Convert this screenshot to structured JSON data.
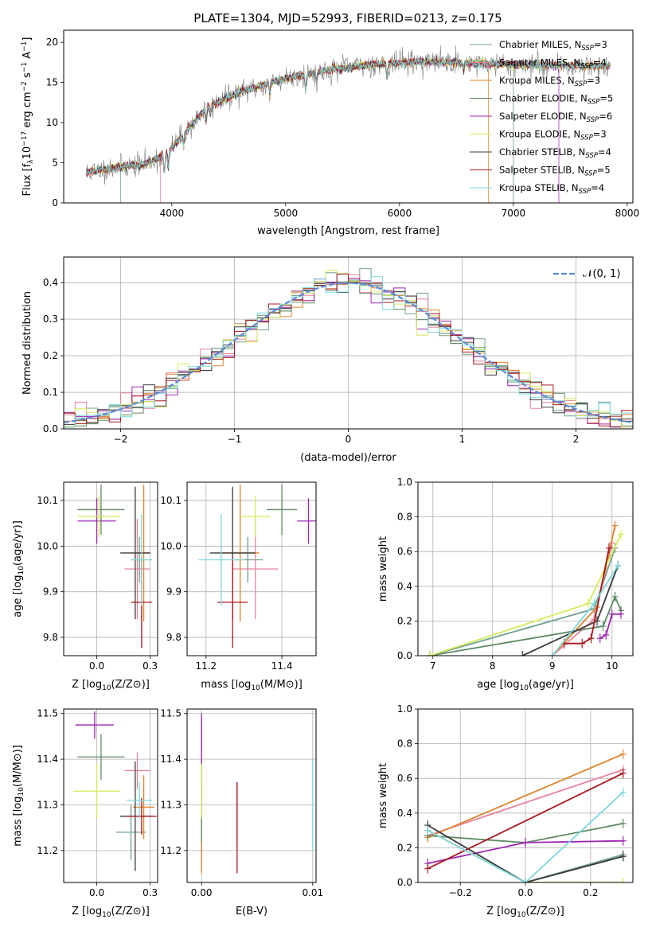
{
  "figure_title": "PLATE=1304, MJD=52993, FIBERID=0213, z=0.175",
  "series": [
    {
      "label": "Chabrier MILES, N",
      "sub": "SSP",
      "suffix": "=3",
      "color": "#6fa08c"
    },
    {
      "label": "Salpeter MILES, N",
      "sub": "SSP",
      "suffix": "=4",
      "color": "#e7849a"
    },
    {
      "label": "Kroupa MILES, N",
      "sub": "SSP",
      "suffix": "=3",
      "color": "#e0842c"
    },
    {
      "label": "Chabrier ELODIE, N",
      "sub": "SSP",
      "suffix": "=5",
      "color": "#5d8a62"
    },
    {
      "label": "Salpeter ELODIE, N",
      "sub": "SSP",
      "suffix": "=6",
      "color": "#9c27b0"
    },
    {
      "label": "Kroupa ELODIE, N",
      "sub": "SSP",
      "suffix": "=3",
      "color": "#d4ec5a"
    },
    {
      "label": "Chabrier STELIB, N",
      "sub": "SSP",
      "suffix": "=4",
      "color": "#3a3a3a"
    },
    {
      "label": "Salpeter STELIB, N",
      "sub": "SSP",
      "suffix": "=5",
      "color": "#a8181e"
    },
    {
      "label": "Kroupa STELIB, N",
      "sub": "SSP",
      "suffix": "=4",
      "color": "#7fd8dc"
    }
  ],
  "chart_data": [
    {
      "id": "spectrum",
      "type": "line",
      "xlabel": "wavelength [Angstrom, rest frame]",
      "ylabel_parts": [
        "Flux [f",
        "λ",
        "10",
        "−17",
        " erg cm",
        "−2",
        " s",
        "−1",
        " A",
        "−1",
        "]"
      ],
      "xlim": [
        3050,
        8050
      ],
      "ylim": [
        0,
        21.5
      ],
      "xticks": [
        4000,
        5000,
        6000,
        7000,
        8000
      ],
      "yticks": [
        0,
        5,
        10,
        15,
        20
      ],
      "legend": "top-right",
      "continuum_knots": [
        [
          3250,
          3.8
        ],
        [
          3500,
          4.4
        ],
        [
          3750,
          4.8
        ],
        [
          3950,
          6.0
        ],
        [
          4100,
          8.5
        ],
        [
          4300,
          11.8
        ],
        [
          4600,
          13.8
        ],
        [
          5000,
          15.5
        ],
        [
          5400,
          16.6
        ],
        [
          5800,
          17.3
        ],
        [
          6200,
          17.6
        ],
        [
          6600,
          17.4
        ],
        [
          7000,
          17.2
        ],
        [
          7500,
          17.1
        ],
        [
          7850,
          17.0
        ]
      ],
      "model_range": [
        3250,
        7850
      ],
      "model_dropouts": [
        3550,
        3900,
        6780,
        7000,
        7400
      ]
    },
    {
      "id": "residuals",
      "type": "histogram",
      "xlabel": "(data-model)/error",
      "ylabel": "Normed distribution",
      "xlim": [
        -2.5,
        2.5
      ],
      "ylim": [
        0,
        0.47
      ],
      "xticks": [
        -2,
        -1,
        0,
        1,
        2
      ],
      "yticks": [
        0,
        0.1,
        0.2,
        0.3,
        0.4
      ],
      "reference_curve": "N(0,1)",
      "legend": "top-right",
      "bin_width": 0.1
    },
    {
      "id": "age-vs-Z",
      "type": "errorbar",
      "xlabel": "Z [log10(Z/Z⊙)]",
      "ylabel": "age  [log10(age/yr)]",
      "xlim": [
        -0.155,
        0.285
      ],
      "ylim": [
        9.76,
        10.14
      ],
      "xticks": [
        0.0,
        0.25
      ],
      "yticks": [
        9.8,
        9.9,
        10.0,
        10.1
      ],
      "points": [
        {
          "x": 0.2,
          "xerr": 0.04,
          "y": 9.97,
          "yerr": 0.05
        },
        {
          "x": 0.19,
          "xerr": 0.06,
          "y": 9.95,
          "yerr": 0.11
        },
        {
          "x": 0.22,
          "xerr": 0.03,
          "y": 9.985,
          "yerr": 0.15
        },
        {
          "x": 0.02,
          "xerr": 0.11,
          "y": 10.08,
          "yerr": 0.055
        },
        {
          "x": 0.0,
          "xerr": 0.09,
          "y": 10.055,
          "yerr": 0.05
        },
        {
          "x": 0.01,
          "xerr": 0.1,
          "y": 10.065,
          "yerr": 0.045
        },
        {
          "x": 0.18,
          "xerr": 0.07,
          "y": 9.985,
          "yerr": 0.145
        },
        {
          "x": 0.21,
          "xerr": 0.05,
          "y": 9.877,
          "yerr": 0.1
        },
        {
          "x": 0.21,
          "xerr": 0.05,
          "y": 9.97,
          "yerr": 0.1
        }
      ]
    },
    {
      "id": "age-vs-mass",
      "type": "errorbar",
      "xlabel": "mass [log10(M/M⊙)]",
      "ylabel": "",
      "xlim": [
        11.15,
        11.49
      ],
      "ylim": [
        9.76,
        10.14
      ],
      "xticks": [
        11.2,
        11.4
      ],
      "yticks": [
        9.8,
        9.9,
        10.0,
        10.1
      ],
      "points": [
        {
          "x": 11.31,
          "xerr": 0.04,
          "y": 9.97,
          "yerr": 0.05
        },
        {
          "x": 11.33,
          "xerr": 0.06,
          "y": 9.95,
          "yerr": 0.11
        },
        {
          "x": 11.29,
          "xerr": 0.05,
          "y": 9.985,
          "yerr": 0.15
        },
        {
          "x": 11.4,
          "xerr": 0.04,
          "y": 10.08,
          "yerr": 0.055
        },
        {
          "x": 11.47,
          "xerr": 0.03,
          "y": 10.055,
          "yerr": 0.05
        },
        {
          "x": 11.33,
          "xerr": 0.04,
          "y": 10.065,
          "yerr": 0.045
        },
        {
          "x": 11.27,
          "xerr": 0.06,
          "y": 9.985,
          "yerr": 0.145
        },
        {
          "x": 11.27,
          "xerr": 0.04,
          "y": 9.877,
          "yerr": 0.1
        },
        {
          "x": 11.24,
          "xerr": 0.06,
          "y": 9.97,
          "yerr": 0.1
        }
      ]
    },
    {
      "id": "massweight-vs-age",
      "type": "line",
      "xlabel": "age  [log10(age/yr)]",
      "ylabel": "mass weight",
      "xlim": [
        6.75,
        10.35
      ],
      "ylim": [
        0,
        1.0
      ],
      "xticks": [
        7,
        8,
        9,
        10
      ],
      "yticks": [
        0.0,
        0.2,
        0.4,
        0.6,
        0.8,
        1.0
      ],
      "lines": [
        {
          "pts": [
            [
              6.95,
              0.0
            ],
            [
              9.7,
              0.27
            ],
            [
              10.05,
              0.62
            ]
          ]
        },
        {
          "pts": [
            [
              9.0,
              0.0
            ],
            [
              9.7,
              0.21
            ],
            [
              10.0,
              0.65
            ]
          ]
        },
        {
          "pts": [
            [
              9.0,
              0.0
            ],
            [
              9.75,
              0.28
            ],
            [
              10.05,
              0.75
            ]
          ]
        },
        {
          "pts": [
            [
              6.95,
              0.0
            ],
            [
              9.85,
              0.17
            ],
            [
              10.05,
              0.34
            ],
            [
              10.15,
              0.26
            ]
          ]
        },
        {
          "pts": [
            [
              9.8,
              0.1
            ],
            [
              9.9,
              0.12
            ],
            [
              10.0,
              0.24
            ],
            [
              10.15,
              0.24
            ]
          ]
        },
        {
          "pts": [
            [
              6.95,
              0.0
            ],
            [
              9.6,
              0.3
            ],
            [
              10.15,
              0.7
            ]
          ]
        },
        {
          "pts": [
            [
              8.5,
              0.0
            ],
            [
              9.75,
              0.2
            ],
            [
              10.1,
              0.52
            ]
          ]
        },
        {
          "pts": [
            [
              9.2,
              0.07
            ],
            [
              9.5,
              0.07
            ],
            [
              9.65,
              0.1
            ],
            [
              9.95,
              0.62
            ]
          ]
        },
        {
          "pts": [
            [
              9.0,
              0.0
            ],
            [
              9.7,
              0.3
            ],
            [
              10.1,
              0.52
            ]
          ]
        }
      ]
    },
    {
      "id": "mass-vs-Z",
      "type": "errorbar",
      "xlabel": "Z [log10(Z/Z⊙)]",
      "ylabel": "mass [log10(M/M⊙)]",
      "xlim": [
        -0.155,
        0.285
      ],
      "ylim": [
        11.13,
        11.51
      ],
      "xticks": [
        0.0,
        0.25
      ],
      "yticks": [
        11.2,
        11.3,
        11.4,
        11.5
      ],
      "points": [
        {
          "x": 0.16,
          "xerr": 0.07,
          "y": 11.24,
          "yerr": 0.06
        },
        {
          "x": 0.19,
          "xerr": 0.06,
          "y": 11.375,
          "yerr": 0.04
        },
        {
          "x": 0.22,
          "xerr": 0.05,
          "y": 11.295,
          "yerr": 0.07
        },
        {
          "x": 0.02,
          "xerr": 0.11,
          "y": 11.405,
          "yerr": 0.05
        },
        {
          "x": -0.01,
          "xerr": 0.09,
          "y": 11.475,
          "yerr": 0.03
        },
        {
          "x": 0.0,
          "xerr": 0.11,
          "y": 11.33,
          "yerr": 0.06
        },
        {
          "x": 0.18,
          "xerr": 0.07,
          "y": 11.275,
          "yerr": 0.12
        },
        {
          "x": 0.21,
          "xerr": 0.07,
          "y": 11.275,
          "yerr": 0.04
        },
        {
          "x": 0.2,
          "xerr": 0.06,
          "y": 11.31,
          "yerr": 0.04
        }
      ]
    },
    {
      "id": "mass-vs-ebv",
      "type": "errorbar",
      "xlabel": "E(B-V)",
      "ylabel": "",
      "xlim": [
        -0.0013,
        0.0103
      ],
      "ylim": [
        11.13,
        11.51
      ],
      "xticks": [
        0.0,
        0.01
      ],
      "yticks": [
        11.2,
        11.3,
        11.4,
        11.5
      ],
      "points": [
        {
          "x": 0.0,
          "xerr": 0,
          "y": 11.33,
          "yerr": 0.16
        },
        {
          "x": 0.0,
          "xerr": 0,
          "y": 11.38,
          "yerr": 0.1
        },
        {
          "x": 0.0,
          "xerr": 0,
          "y": 11.25,
          "yerr": 0.1
        },
        {
          "x": 0.0,
          "xerr": 0,
          "y": 11.28,
          "yerr": 0.06
        },
        {
          "x": 0.0,
          "xerr": 0,
          "y": 11.4,
          "yerr": 0.1
        },
        {
          "x": 0.0,
          "xerr": 0,
          "y": 11.33,
          "yerr": 0.06
        },
        {
          "x": 0.0032,
          "xerr": 0,
          "y": 11.28,
          "yerr": 0.07
        },
        {
          "x": 0.0032,
          "xerr": 0,
          "y": 11.25,
          "yerr": 0.1
        },
        {
          "x": 0.01,
          "xerr": 0,
          "y": 11.3,
          "yerr": 0.1
        }
      ]
    },
    {
      "id": "massweight-vs-Z",
      "type": "line",
      "xlabel": "Z [log10(Z/Z⊙)]",
      "ylabel": "mass weight",
      "xlim": [
        -0.33,
        0.33
      ],
      "ylim": [
        0,
        1.0
      ],
      "xticks": [
        -0.2,
        0.0,
        0.2
      ],
      "yticks": [
        0.0,
        0.2,
        0.4,
        0.6,
        0.8,
        1.0
      ],
      "lines": [
        {
          "pts": [
            [
              -0.3,
              0.3
            ],
            [
              0.0,
              0.0
            ],
            [
              0.3,
              0.16
            ]
          ]
        },
        {
          "pts": [
            [
              -0.3,
              0.27
            ],
            [
              0.3,
              0.65
            ]
          ]
        },
        {
          "pts": [
            [
              -0.3,
              0.26
            ],
            [
              0.3,
              0.74
            ]
          ]
        },
        {
          "pts": [
            [
              -0.3,
              0.27
            ],
            [
              0.0,
              0.23
            ],
            [
              0.3,
              0.34
            ]
          ]
        },
        {
          "pts": [
            [
              -0.3,
              0.11
            ],
            [
              0.0,
              0.23
            ],
            [
              0.3,
              0.24
            ]
          ]
        },
        {
          "pts": [
            [
              -0.3,
              0.3
            ],
            [
              0.0,
              0.0
            ],
            [
              0.3,
              0.0
            ]
          ]
        },
        {
          "pts": [
            [
              -0.3,
              0.33
            ],
            [
              0.0,
              0.0
            ],
            [
              0.3,
              0.15
            ]
          ]
        },
        {
          "pts": [
            [
              -0.3,
              0.08
            ],
            [
              0.3,
              0.63
            ]
          ]
        },
        {
          "pts": [
            [
              -0.3,
              0.3
            ],
            [
              0.0,
              0.0
            ],
            [
              0.3,
              0.52
            ]
          ]
        }
      ]
    }
  ]
}
